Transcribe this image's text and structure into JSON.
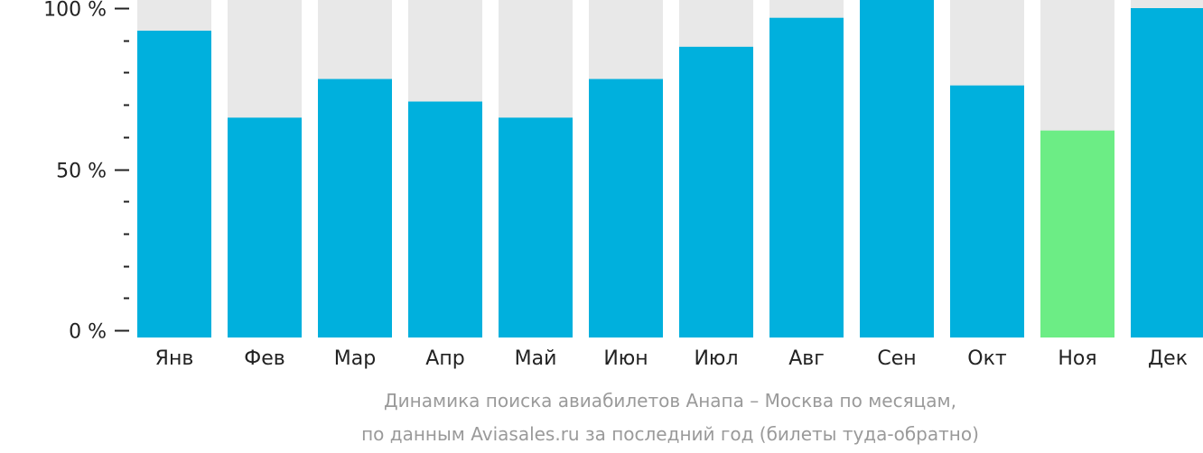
{
  "chart_data": {
    "type": "bar",
    "title": "Динамика поиска авиабилетов Анапа – Москва по месяцам,",
    "subtitle": "по данным Aviasales.ru за последний год (билеты туда-обратно)",
    "categories": [
      "Янв",
      "Фев",
      "Мар",
      "Апр",
      "Май",
      "Июн",
      "Июл",
      "Авг",
      "Сен",
      "Окт",
      "Ноя",
      "Дек"
    ],
    "values": [
      93,
      66,
      78,
      71,
      66,
      78,
      88,
      97,
      105,
      76,
      62,
      100
    ],
    "ylim": [
      0,
      100
    ],
    "y_ticks": [
      {
        "value": 100,
        "label": "100 %"
      },
      {
        "value": 50,
        "label": "50 %"
      },
      {
        "value": 0,
        "label": "0 %"
      }
    ],
    "y_minor_step": 10,
    "xlabel": "",
    "ylabel": "",
    "highlight_index": 10,
    "colors": {
      "bar": "#00b0dd",
      "highlight": "#6ced85",
      "background_bar": "#e8e8e8",
      "axis": "#222222",
      "caption": "#9a9a9a"
    }
  }
}
